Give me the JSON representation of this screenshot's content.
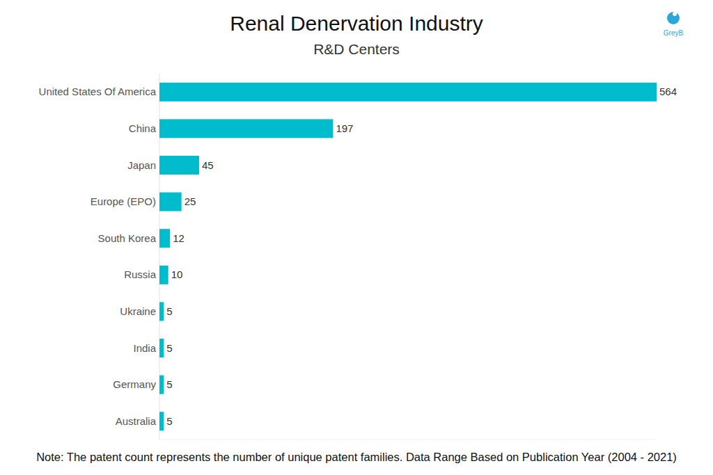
{
  "chart_data": {
    "type": "bar",
    "orientation": "horizontal",
    "title": "Renal Denervation Industry",
    "subtitle": "R&D Centers",
    "logo": "GreyB",
    "note": "Note: The patent count represents the number of unique patent families. Data Range Based on Publication Year (2004 - 2021)",
    "categories": [
      "United States Of America",
      "China",
      "Japan",
      "Europe (EPO)",
      "South Korea",
      "Russia",
      "Ukraine",
      "India",
      "Germany",
      "Australia"
    ],
    "values": [
      564,
      197,
      45,
      25,
      12,
      10,
      5,
      5,
      5,
      5
    ],
    "color": "#00bccc",
    "xlim": [
      0,
      564
    ],
    "data_labels": true,
    "tick_labels": "y",
    "grid": false
  }
}
